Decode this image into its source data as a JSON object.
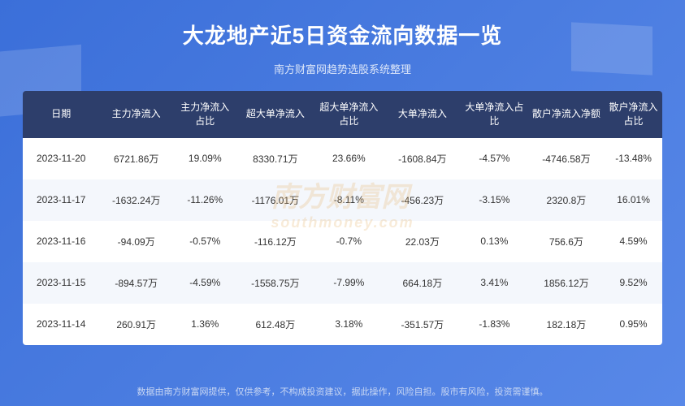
{
  "title": "大龙地产近5日资金流向数据一览",
  "subtitle": "南方财富网趋势选股系统整理",
  "watermark_main": "南方财富网",
  "watermark_sub": "southmoney.com",
  "footer": "数据由南方财富网提供，仅供参考，不构成投资建议，据此操作，风险自担。股市有风险，投资需谨慎。",
  "table": {
    "columns": [
      "日期",
      "主力净流入",
      "主力净流入占比",
      "超大单净流入",
      "超大单净流入占比",
      "大单净流入",
      "大单净流入占比",
      "散户净流入净额",
      "散户净流入占比"
    ],
    "col_widths": [
      "12%",
      "11.5%",
      "10%",
      "12%",
      "11%",
      "12%",
      "10.5%",
      "12%",
      "9%"
    ],
    "rows": [
      [
        "2023-11-20",
        "6721.86万",
        "19.09%",
        "8330.71万",
        "23.66%",
        "-1608.84万",
        "-4.57%",
        "-4746.58万",
        "-13.48%"
      ],
      [
        "2023-11-17",
        "-1632.24万",
        "-11.26%",
        "-1176.01万",
        "-8.11%",
        "-456.23万",
        "-3.15%",
        "2320.8万",
        "16.01%"
      ],
      [
        "2023-11-16",
        "-94.09万",
        "-0.57%",
        "-116.12万",
        "-0.7%",
        "22.03万",
        "0.13%",
        "756.6万",
        "4.59%"
      ],
      [
        "2023-11-15",
        "-894.57万",
        "-4.59%",
        "-1558.75万",
        "-7.99%",
        "664.18万",
        "3.41%",
        "1856.12万",
        "9.52%"
      ],
      [
        "2023-11-14",
        "260.91万",
        "1.36%",
        "612.48万",
        "3.18%",
        "-351.57万",
        "-1.83%",
        "182.18万",
        "0.95%"
      ]
    ],
    "header_bg": "#2d3e6b",
    "row_bg": "#ffffff",
    "row_alt_bg": "#f4f7fc",
    "text_color": "#333333",
    "header_text_color": "#ffffff"
  },
  "background": {
    "gradient_from": "#3b6fd9",
    "gradient_to": "#5888e8"
  }
}
